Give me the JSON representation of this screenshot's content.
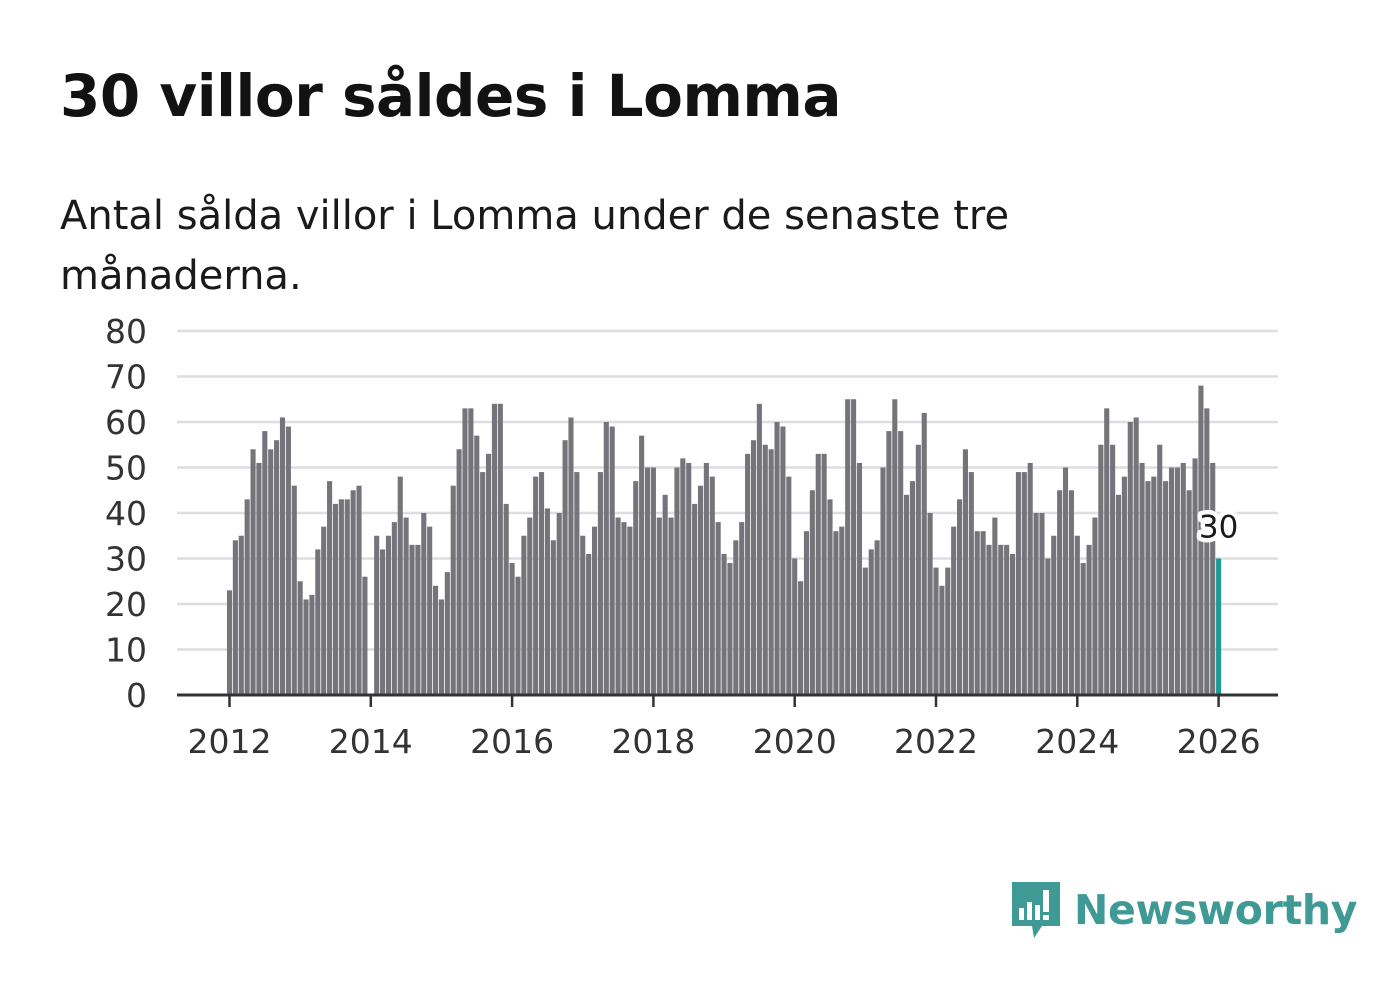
{
  "title": "30 villor såldes i Lomma",
  "subtitle": "Antal sålda villor i Lomma under de senaste tre månaderna.",
  "brand": {
    "name": "Newsworthy"
  },
  "colors": {
    "bar": "#75747a",
    "highlight": "#1e9a96",
    "grid": "#dedede",
    "axis": "#333333",
    "brand": "#3f9a96"
  },
  "chart_data": {
    "type": "bar",
    "title": "30 villor såldes i Lomma",
    "xlabel": "",
    "ylabel": "",
    "ylim": [
      0,
      80
    ],
    "yticks": [
      "0",
      "10",
      "20",
      "30",
      "40",
      "50",
      "60",
      "70",
      "80"
    ],
    "xticks": [
      "2012",
      "2014",
      "2016",
      "2018",
      "2020",
      "2022",
      "2024",
      "2026"
    ],
    "start": "2012-01",
    "period": "month",
    "highlight_label": "30",
    "values": [
      23,
      34,
      35,
      43,
      54,
      51,
      58,
      54,
      56,
      61,
      59,
      46,
      25,
      21,
      22,
      32,
      37,
      47,
      42,
      43,
      43,
      45,
      46,
      26,
      null,
      35,
      32,
      35,
      38,
      48,
      39,
      33,
      33,
      40,
      37,
      24,
      21,
      27,
      46,
      54,
      63,
      63,
      57,
      49,
      53,
      64,
      64,
      42,
      29,
      26,
      35,
      39,
      48,
      49,
      41,
      34,
      40,
      56,
      61,
      49,
      35,
      31,
      37,
      49,
      60,
      59,
      39,
      38,
      37,
      47,
      57,
      50,
      50,
      39,
      44,
      39,
      50,
      52,
      51,
      42,
      46,
      51,
      48,
      38,
      31,
      29,
      34,
      38,
      53,
      56,
      64,
      55,
      54,
      60,
      59,
      48,
      30,
      25,
      36,
      45,
      53,
      53,
      43,
      36,
      37,
      65,
      65,
      51,
      28,
      32,
      34,
      50,
      58,
      65,
      58,
      44,
      47,
      55,
      62,
      40,
      28,
      24,
      28,
      37,
      43,
      54,
      49,
      36,
      36,
      33,
      39,
      33,
      33,
      31,
      49,
      49,
      51,
      40,
      40,
      30,
      35,
      45,
      50,
      45,
      35,
      29,
      33,
      39,
      55,
      63,
      55,
      44,
      48,
      60,
      61,
      51,
      47,
      48,
      55,
      47,
      50,
      50,
      51,
      45,
      52,
      68,
      63,
      51,
      30
    ]
  }
}
